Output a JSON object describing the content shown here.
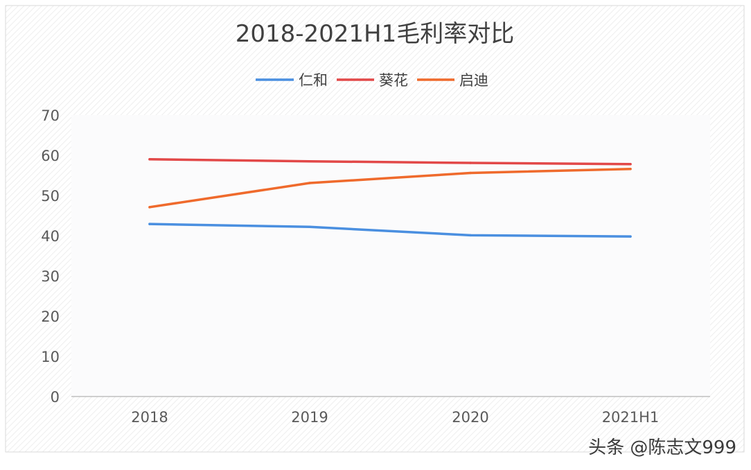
{
  "chart_data": {
    "type": "line",
    "title": "2018-2021H1毛利率对比",
    "categories": [
      "2018",
      "2019",
      "2020",
      "2021H1"
    ],
    "ylim": [
      0,
      70
    ],
    "yticks": [
      0,
      10,
      20,
      30,
      40,
      50,
      60,
      70
    ],
    "grid": false,
    "legend": "top",
    "series": [
      {
        "name": "仁和",
        "color": "#4a8fe0",
        "values": [
          42.9,
          42.2,
          40.1,
          39.8
        ]
      },
      {
        "name": "葵花",
        "color": "#e24848",
        "values": [
          59.0,
          58.5,
          58.1,
          57.8
        ]
      },
      {
        "name": "启迪",
        "color": "#ef6a2c",
        "values": [
          47.1,
          53.1,
          55.6,
          56.6
        ]
      }
    ]
  },
  "watermark": "头条 @陈志文999",
  "colors": {
    "plot_background": "#fbfbfc",
    "axis": "#bfbfbf",
    "frame": "#d9d9d9"
  }
}
